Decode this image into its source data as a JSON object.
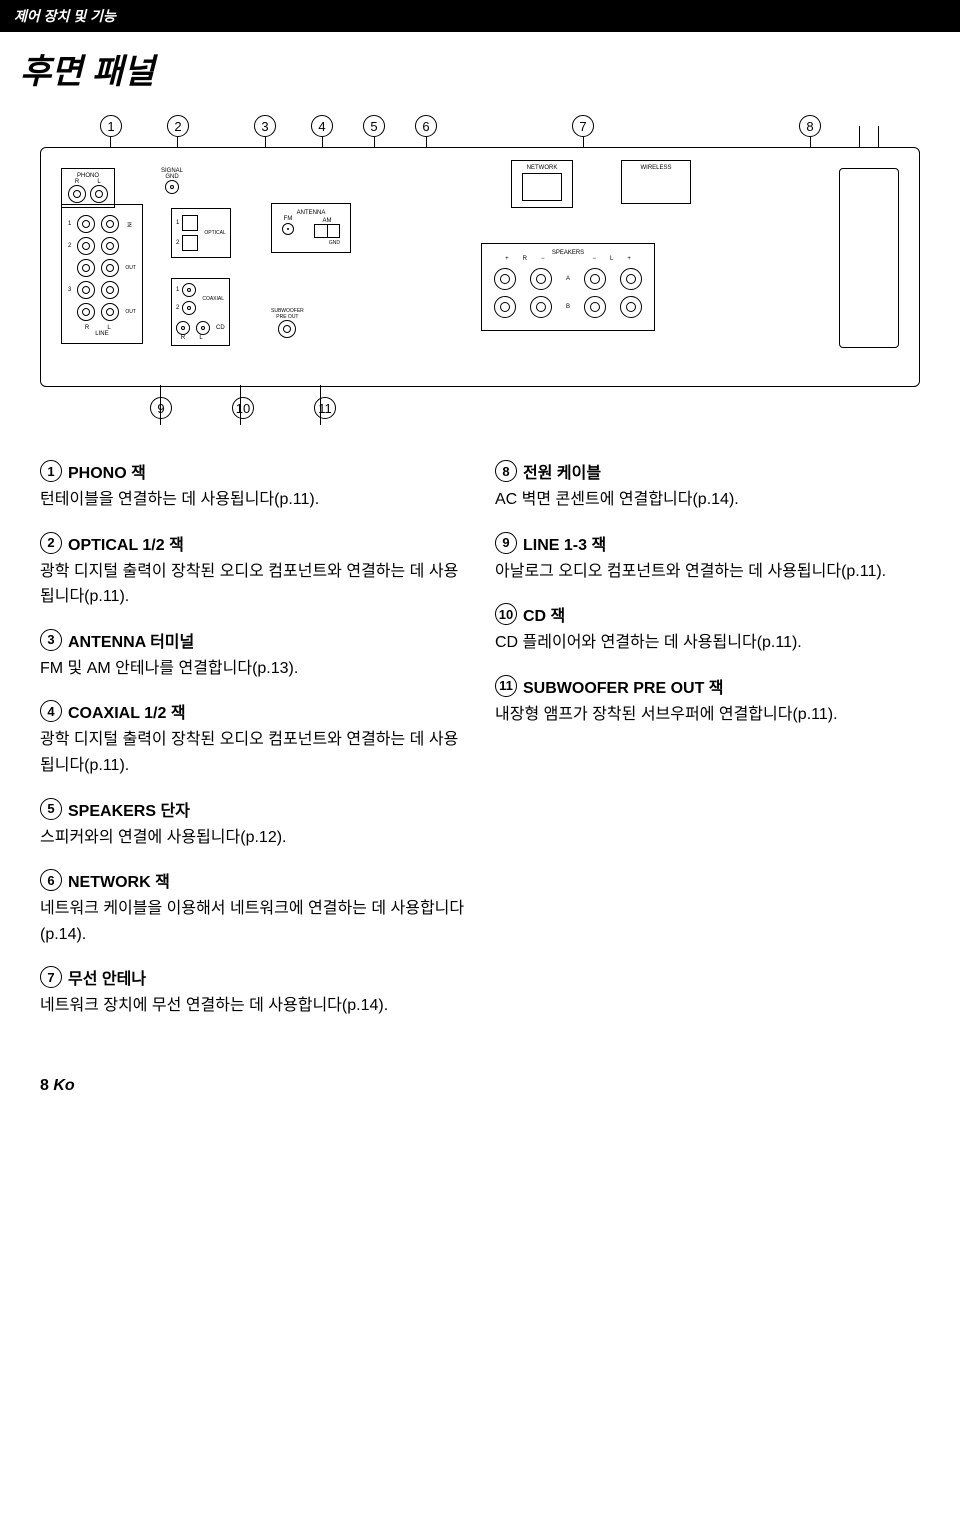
{
  "header": "제어 장치 및 기능",
  "title": "후면 패널",
  "callouts_top": [
    "1",
    "2",
    "3",
    "4",
    "5",
    "6",
    "7",
    "8"
  ],
  "callouts_bottom": [
    "9",
    "10",
    "11"
  ],
  "panel": {
    "phono": "PHONO",
    "signal_gnd": "SIGNAL\nGND",
    "optical": "OPTICAL",
    "coaxial": "COAXIAL",
    "cd": "CD",
    "line": "LINE",
    "antenna": "ANTENNA",
    "fm": "FM",
    "am": "AM",
    "gnd_small": "GND",
    "subwoofer": "SUBWOOFER\nPRE OUT",
    "network": "NETWORK",
    "wireless": "WIRELESS",
    "speakers": "SPEAKERS",
    "in": "IN",
    "out": "OUT",
    "r": "R",
    "l": "L",
    "a": "A",
    "b": "B",
    "plus": "+",
    "minus": "−",
    "n1": "1",
    "n2": "2",
    "n3": "3"
  },
  "items_left": [
    {
      "num": "1",
      "title": "PHONO 잭",
      "desc": "턴테이블을 연결하는 데 사용됩니다(p.11)."
    },
    {
      "num": "2",
      "title": "OPTICAL 1/2 잭",
      "desc": "광학 디지털 출력이 장착된 오디오 컴포넌트와 연결하는 데 사용됩니다(p.11)."
    },
    {
      "num": "3",
      "title": "ANTENNA 터미널",
      "desc": "FM 및 AM 안테나를 연결합니다(p.13)."
    },
    {
      "num": "4",
      "title": "COAXIAL 1/2 잭",
      "desc": "광학 디지털 출력이 장착된 오디오 컴포넌트와 연결하는 데 사용됩니다(p.11)."
    },
    {
      "num": "5",
      "title": "SPEAKERS 단자",
      "desc": "스피커와의 연결에 사용됩니다(p.12)."
    },
    {
      "num": "6",
      "title": "NETWORK 잭",
      "desc": "네트워크 케이블을 이용해서 네트워크에 연결하는 데 사용합니다(p.14)."
    },
    {
      "num": "7",
      "title": "무선 안테나",
      "desc": "네트워크 장치에 무선 연결하는 데 사용합니다(p.14)."
    }
  ],
  "items_right": [
    {
      "num": "8",
      "title": "전원 케이블",
      "desc": "AC 벽면 콘센트에 연결합니다(p.14)."
    },
    {
      "num": "9",
      "title": "LINE 1-3 잭",
      "desc": "아날로그 오디오 컴포넌트와 연결하는 데 사용됩니다(p.11)."
    },
    {
      "num": "10",
      "title": "CD 잭",
      "desc": "CD 플레이어와 연결하는 데 사용됩니다(p.11)."
    },
    {
      "num": "11",
      "title": "SUBWOOFER PRE OUT 잭",
      "desc": "내장형 앰프가 장착된 서브우퍼에 연결합니다(p.11)."
    }
  ],
  "footer": {
    "page": "8",
    "lang": "Ko"
  }
}
